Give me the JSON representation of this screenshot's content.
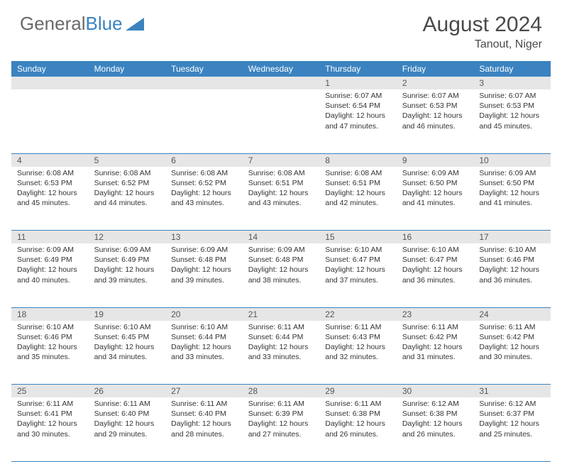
{
  "brand": {
    "part1": "General",
    "part2": "Blue"
  },
  "title": {
    "month": "August 2024",
    "location": "Tanout, Niger"
  },
  "colors": {
    "header_bg": "#3b83c0",
    "header_text": "#ffffff",
    "daynum_bg": "#e6e6e6",
    "text": "#333333",
    "rule": "#3b83c0"
  },
  "day_headers": [
    "Sunday",
    "Monday",
    "Tuesday",
    "Wednesday",
    "Thursday",
    "Friday",
    "Saturday"
  ],
  "weeks": [
    {
      "nums": [
        "",
        "",
        "",
        "",
        "1",
        "2",
        "3"
      ],
      "cells": [
        null,
        null,
        null,
        null,
        {
          "sr": "Sunrise: 6:07 AM",
          "ss": "Sunset: 6:54 PM",
          "dl": "Daylight: 12 hours and 47 minutes."
        },
        {
          "sr": "Sunrise: 6:07 AM",
          "ss": "Sunset: 6:53 PM",
          "dl": "Daylight: 12 hours and 46 minutes."
        },
        {
          "sr": "Sunrise: 6:07 AM",
          "ss": "Sunset: 6:53 PM",
          "dl": "Daylight: 12 hours and 45 minutes."
        }
      ]
    },
    {
      "nums": [
        "4",
        "5",
        "6",
        "7",
        "8",
        "9",
        "10"
      ],
      "cells": [
        {
          "sr": "Sunrise: 6:08 AM",
          "ss": "Sunset: 6:53 PM",
          "dl": "Daylight: 12 hours and 45 minutes."
        },
        {
          "sr": "Sunrise: 6:08 AM",
          "ss": "Sunset: 6:52 PM",
          "dl": "Daylight: 12 hours and 44 minutes."
        },
        {
          "sr": "Sunrise: 6:08 AM",
          "ss": "Sunset: 6:52 PM",
          "dl": "Daylight: 12 hours and 43 minutes."
        },
        {
          "sr": "Sunrise: 6:08 AM",
          "ss": "Sunset: 6:51 PM",
          "dl": "Daylight: 12 hours and 43 minutes."
        },
        {
          "sr": "Sunrise: 6:08 AM",
          "ss": "Sunset: 6:51 PM",
          "dl": "Daylight: 12 hours and 42 minutes."
        },
        {
          "sr": "Sunrise: 6:09 AM",
          "ss": "Sunset: 6:50 PM",
          "dl": "Daylight: 12 hours and 41 minutes."
        },
        {
          "sr": "Sunrise: 6:09 AM",
          "ss": "Sunset: 6:50 PM",
          "dl": "Daylight: 12 hours and 41 minutes."
        }
      ]
    },
    {
      "nums": [
        "11",
        "12",
        "13",
        "14",
        "15",
        "16",
        "17"
      ],
      "cells": [
        {
          "sr": "Sunrise: 6:09 AM",
          "ss": "Sunset: 6:49 PM",
          "dl": "Daylight: 12 hours and 40 minutes."
        },
        {
          "sr": "Sunrise: 6:09 AM",
          "ss": "Sunset: 6:49 PM",
          "dl": "Daylight: 12 hours and 39 minutes."
        },
        {
          "sr": "Sunrise: 6:09 AM",
          "ss": "Sunset: 6:48 PM",
          "dl": "Daylight: 12 hours and 39 minutes."
        },
        {
          "sr": "Sunrise: 6:09 AM",
          "ss": "Sunset: 6:48 PM",
          "dl": "Daylight: 12 hours and 38 minutes."
        },
        {
          "sr": "Sunrise: 6:10 AM",
          "ss": "Sunset: 6:47 PM",
          "dl": "Daylight: 12 hours and 37 minutes."
        },
        {
          "sr": "Sunrise: 6:10 AM",
          "ss": "Sunset: 6:47 PM",
          "dl": "Daylight: 12 hours and 36 minutes."
        },
        {
          "sr": "Sunrise: 6:10 AM",
          "ss": "Sunset: 6:46 PM",
          "dl": "Daylight: 12 hours and 36 minutes."
        }
      ]
    },
    {
      "nums": [
        "18",
        "19",
        "20",
        "21",
        "22",
        "23",
        "24"
      ],
      "cells": [
        {
          "sr": "Sunrise: 6:10 AM",
          "ss": "Sunset: 6:46 PM",
          "dl": "Daylight: 12 hours and 35 minutes."
        },
        {
          "sr": "Sunrise: 6:10 AM",
          "ss": "Sunset: 6:45 PM",
          "dl": "Daylight: 12 hours and 34 minutes."
        },
        {
          "sr": "Sunrise: 6:10 AM",
          "ss": "Sunset: 6:44 PM",
          "dl": "Daylight: 12 hours and 33 minutes."
        },
        {
          "sr": "Sunrise: 6:11 AM",
          "ss": "Sunset: 6:44 PM",
          "dl": "Daylight: 12 hours and 33 minutes."
        },
        {
          "sr": "Sunrise: 6:11 AM",
          "ss": "Sunset: 6:43 PM",
          "dl": "Daylight: 12 hours and 32 minutes."
        },
        {
          "sr": "Sunrise: 6:11 AM",
          "ss": "Sunset: 6:42 PM",
          "dl": "Daylight: 12 hours and 31 minutes."
        },
        {
          "sr": "Sunrise: 6:11 AM",
          "ss": "Sunset: 6:42 PM",
          "dl": "Daylight: 12 hours and 30 minutes."
        }
      ]
    },
    {
      "nums": [
        "25",
        "26",
        "27",
        "28",
        "29",
        "30",
        "31"
      ],
      "cells": [
        {
          "sr": "Sunrise: 6:11 AM",
          "ss": "Sunset: 6:41 PM",
          "dl": "Daylight: 12 hours and 30 minutes."
        },
        {
          "sr": "Sunrise: 6:11 AM",
          "ss": "Sunset: 6:40 PM",
          "dl": "Daylight: 12 hours and 29 minutes."
        },
        {
          "sr": "Sunrise: 6:11 AM",
          "ss": "Sunset: 6:40 PM",
          "dl": "Daylight: 12 hours and 28 minutes."
        },
        {
          "sr": "Sunrise: 6:11 AM",
          "ss": "Sunset: 6:39 PM",
          "dl": "Daylight: 12 hours and 27 minutes."
        },
        {
          "sr": "Sunrise: 6:11 AM",
          "ss": "Sunset: 6:38 PM",
          "dl": "Daylight: 12 hours and 26 minutes."
        },
        {
          "sr": "Sunrise: 6:12 AM",
          "ss": "Sunset: 6:38 PM",
          "dl": "Daylight: 12 hours and 26 minutes."
        },
        {
          "sr": "Sunrise: 6:12 AM",
          "ss": "Sunset: 6:37 PM",
          "dl": "Daylight: 12 hours and 25 minutes."
        }
      ]
    }
  ]
}
